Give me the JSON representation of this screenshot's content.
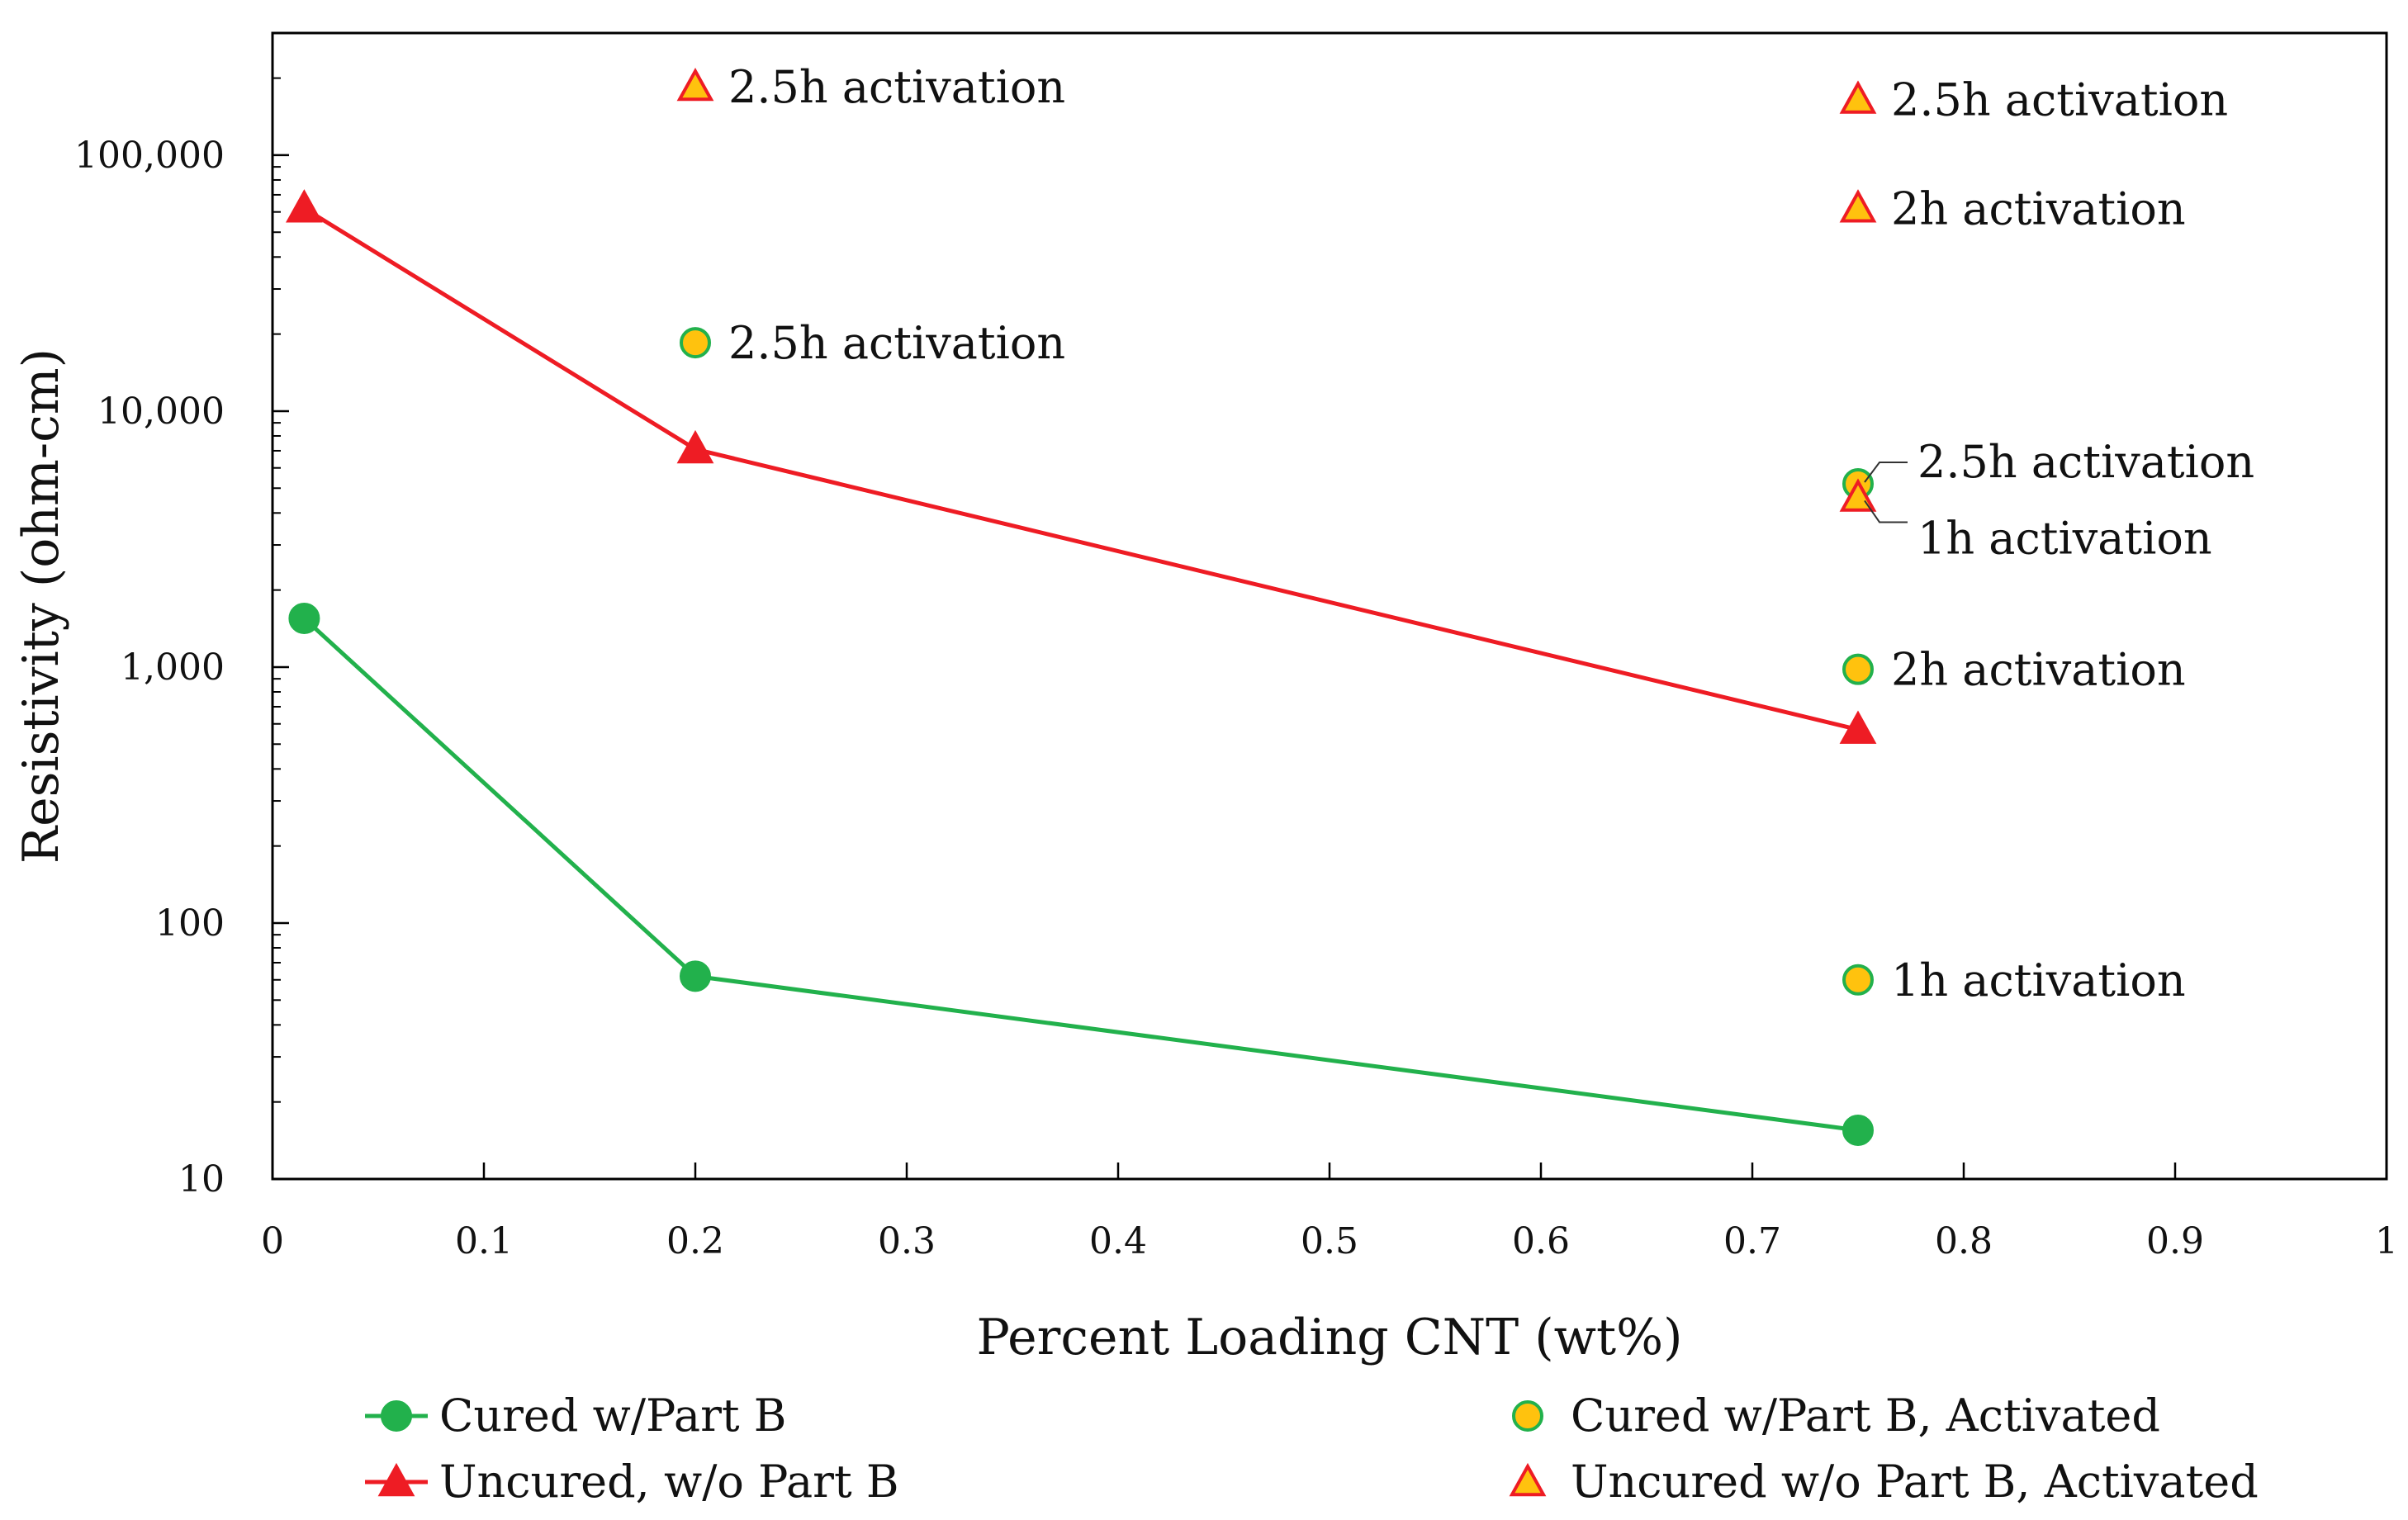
{
  "chart_data": {
    "type": "line",
    "title": "",
    "xlabel": "Percent Loading CNT (wt%)",
    "ylabel": "Resistivity (ohm-cm)",
    "xlim": [
      0,
      1
    ],
    "ylim": [
      10,
      300000
    ],
    "yscale": "log",
    "grid": false,
    "x_ticks": [
      {
        "value": 0,
        "label": "0"
      },
      {
        "value": 0.1,
        "label": "0.1"
      },
      {
        "value": 0.2,
        "label": "0.2"
      },
      {
        "value": 0.3,
        "label": "0.3"
      },
      {
        "value": 0.4,
        "label": "0.4"
      },
      {
        "value": 0.5,
        "label": "0.5"
      },
      {
        "value": 0.6,
        "label": "0.6"
      },
      {
        "value": 0.7,
        "label": "0.7"
      },
      {
        "value": 0.8,
        "label": "0.8"
      },
      {
        "value": 0.9,
        "label": "0.9"
      },
      {
        "value": 1,
        "label": "1"
      }
    ],
    "y_ticks": [
      {
        "value": 10,
        "label": "10"
      },
      {
        "value": 100,
        "label": "100"
      },
      {
        "value": 1000,
        "label": "1,000"
      },
      {
        "value": 10000,
        "label": "10,000"
      },
      {
        "value": 100000,
        "label": "100,000"
      }
    ],
    "series": [
      {
        "name": "Cured w/Part B",
        "marker": "circle",
        "line": true,
        "line_color": "#22b14c",
        "marker_fill": "#22b14c",
        "marker_stroke": "#22b14c",
        "points": [
          {
            "x": 0.015,
            "y": 1550
          },
          {
            "x": 0.2,
            "y": 62
          },
          {
            "x": 0.75,
            "y": 15.5
          }
        ]
      },
      {
        "name": "Uncured, w/o Part B",
        "marker": "triangle",
        "line": true,
        "line_color": "#ee1c24",
        "marker_fill": "#ee1c24",
        "marker_stroke": "#ee1c24",
        "points": [
          {
            "x": 0.015,
            "y": 62000
          },
          {
            "x": 0.2,
            "y": 7100
          },
          {
            "x": 0.75,
            "y": 570
          }
        ]
      },
      {
        "name": "Cured w/Part B, Activated",
        "marker": "circle",
        "line": false,
        "marker_fill": "#ffc20e",
        "marker_stroke": "#22b14c",
        "points": [
          {
            "x": 0.2,
            "y": 18500,
            "annotation": "2.5h activation"
          },
          {
            "x": 0.75,
            "y": 5200,
            "annotation": "2.5h activation"
          },
          {
            "x": 0.75,
            "y": 980,
            "annotation": "2h activation"
          },
          {
            "x": 0.75,
            "y": 60,
            "annotation": "1h activation"
          }
        ]
      },
      {
        "name": "Uncured w/o Part B, Activated",
        "marker": "triangle",
        "line": false,
        "marker_fill": "#ffc20e",
        "marker_stroke": "#ee1c24",
        "points": [
          {
            "x": 0.2,
            "y": 185000,
            "annotation": "2.5h activation"
          },
          {
            "x": 0.75,
            "y": 165000,
            "annotation": "2.5h activation"
          },
          {
            "x": 0.75,
            "y": 62000,
            "annotation": "2h activation"
          },
          {
            "x": 0.75,
            "y": 4600,
            "annotation": "1h activation"
          }
        ]
      }
    ],
    "legend": {
      "placement": "bottom",
      "columns": 2,
      "entries": [
        "Cured w/Part B",
        "Uncured, w/o Part B",
        "Cured w/Part B, Activated",
        "Uncured w/o Part B, Activated"
      ]
    }
  }
}
